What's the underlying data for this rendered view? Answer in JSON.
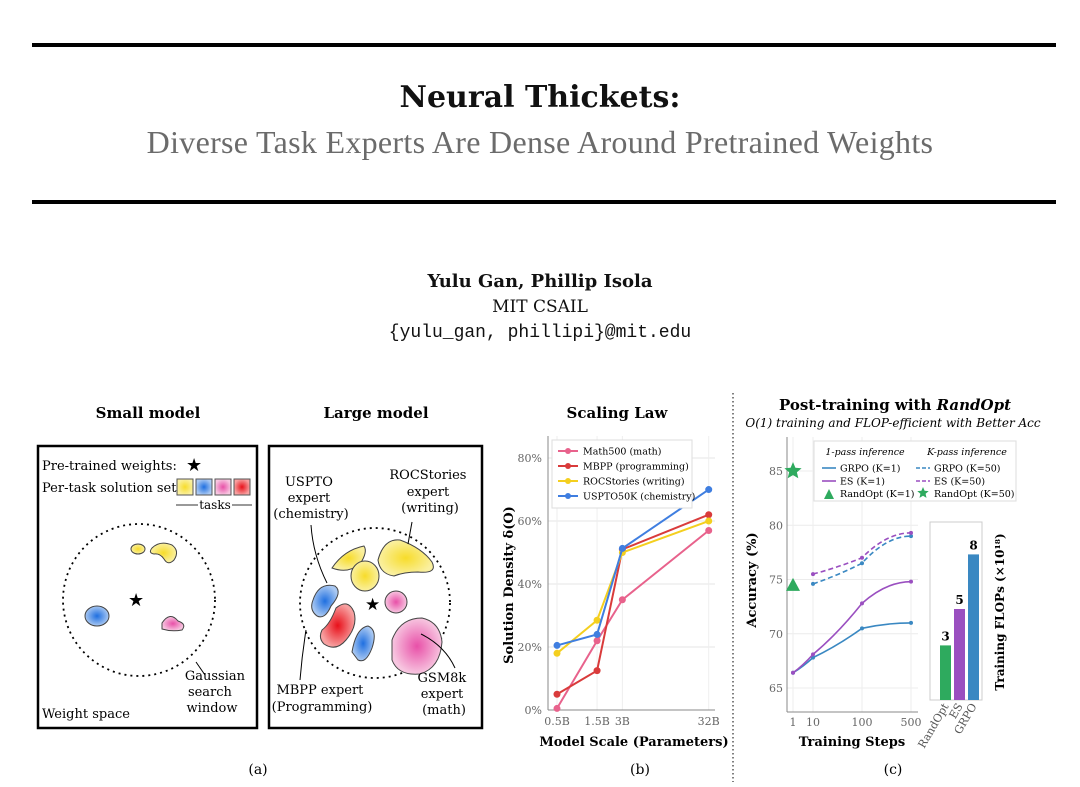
{
  "header": {
    "title": "Neural Thickets:",
    "subtitle": "Diverse Task Experts Are Dense Around Pretrained Weights",
    "authors": "Yulu Gan, Phillip Isola",
    "affiliation": "MIT CSAIL",
    "email": "{yulu_gan, phillipi}@mit.edu"
  },
  "figure": {
    "panel_a": {
      "label": "(a)",
      "small": {
        "title": "Small model",
        "pretrained": "Pre-trained weights:",
        "solution_set": "Per-task solution set:",
        "tasks": "tasks",
        "gaussian": [
          "Gaussian",
          "search",
          "window"
        ],
        "weight_space": "Weight space"
      },
      "large": {
        "title": "Large model",
        "uspto": [
          "USPTO",
          "expert",
          "(chemistry)"
        ],
        "rocstories": [
          "ROCStories",
          "expert",
          "(writing)"
        ],
        "mbpp": [
          "MBPP expert",
          "(Programming)"
        ],
        "gsm8k": [
          "GSM8k",
          "expert",
          "(math)"
        ]
      },
      "task_colors": [
        "#f2d43a",
        "#2f7fe0",
        "#ee7fbf",
        "#e8202a"
      ]
    },
    "panel_b_label": "(b)",
    "panel_c_label": "(c)"
  },
  "chart_data": [
    {
      "type": "line",
      "title": "Scaling Law",
      "xlabel": "Model Scale (Parameters)",
      "ylabel": "Solution Density δ(O)",
      "x_scale": "log",
      "x": [
        0.5,
        1.5,
        3,
        32
      ],
      "x_tick_labels": [
        "0.5B",
        "1.5B",
        "3B",
        "32B"
      ],
      "ylim": [
        0,
        87
      ],
      "y_ticks": [
        0,
        20,
        40,
        60,
        80
      ],
      "y_tick_labels": [
        "0%",
        "20%",
        "40%",
        "60%",
        "80%"
      ],
      "grid": true,
      "legend": "top-left",
      "series": [
        {
          "name": "Math500 (math)",
          "color": "#e8628c",
          "values": [
            0.5,
            22,
            35,
            57
          ]
        },
        {
          "name": "MBPP (programming)",
          "color": "#d93b3b",
          "values": [
            5,
            12.5,
            51,
            62
          ]
        },
        {
          "name": "ROCStories (writing)",
          "color": "#f4cf1f",
          "values": [
            18,
            28.5,
            50,
            60
          ]
        },
        {
          "name": "USPTO50K (chemistry)",
          "color": "#3f7ee0",
          "values": [
            20.5,
            24,
            51.3,
            70
          ]
        }
      ]
    },
    {
      "type": "line",
      "title": "Post-training with RandOpt",
      "title_plain": "Post-training with ",
      "title_italic": "RandOpt",
      "subtitle": "O(1) training and FLOP-efficient with Better Acc",
      "xlabel": "Training Steps",
      "ylabel": "Accuracy (%)",
      "x_ticks": [
        1,
        10,
        100,
        500
      ],
      "x_tick_labels": [
        "1",
        "10",
        "100",
        "500"
      ],
      "ylim": [
        63,
        88
      ],
      "y_ticks": [
        65,
        70,
        75,
        80,
        85
      ],
      "y_tick_labels": [
        "65",
        "70",
        "75",
        "80",
        "85"
      ],
      "grid": true,
      "legend": "top",
      "legend_headers": [
        "1-pass inference",
        "K-pass inference"
      ],
      "series": [
        {
          "name": "GRPO (K=1)",
          "color": "#3a88c2",
          "dash": false,
          "x": [
            1,
            10,
            100,
            500
          ],
          "values": [
            66.4,
            67.8,
            70.5,
            71.0
          ]
        },
        {
          "name": "ES (K=1)",
          "color": "#9a4fc0",
          "dash": false,
          "x": [
            1,
            10,
            100,
            500
          ],
          "values": [
            66.4,
            68.1,
            72.8,
            74.8
          ]
        },
        {
          "name": "GRPO (K=50)",
          "color": "#3a88c2",
          "dash": true,
          "x": [
            10,
            100,
            500
          ],
          "values": [
            74.6,
            76.5,
            79.0
          ]
        },
        {
          "name": "ES (K=50)",
          "color": "#9a4fc0",
          "dash": true,
          "x": [
            10,
            100,
            500
          ],
          "values": [
            75.5,
            77.0,
            79.3
          ]
        }
      ],
      "markers": [
        {
          "name": "RandOpt (K=1)",
          "color": "#2eaa5e",
          "shape": "triangle",
          "x": 1,
          "value": 74.5
        },
        {
          "name": "RandOpt (K=50)",
          "color": "#2eaa5e",
          "shape": "star",
          "x": 1,
          "value": 85.0
        }
      ]
    },
    {
      "type": "bar",
      "ylabel": "Training FLOPs (×10¹⁸)",
      "categories": [
        "RandOpt",
        "ES",
        "GRPO"
      ],
      "values": [
        3,
        5,
        8
      ],
      "data_labels": [
        "3",
        "5",
        "8"
      ],
      "colors": [
        "#2eaa5e",
        "#9a4fc0",
        "#3a88c2"
      ]
    }
  ]
}
